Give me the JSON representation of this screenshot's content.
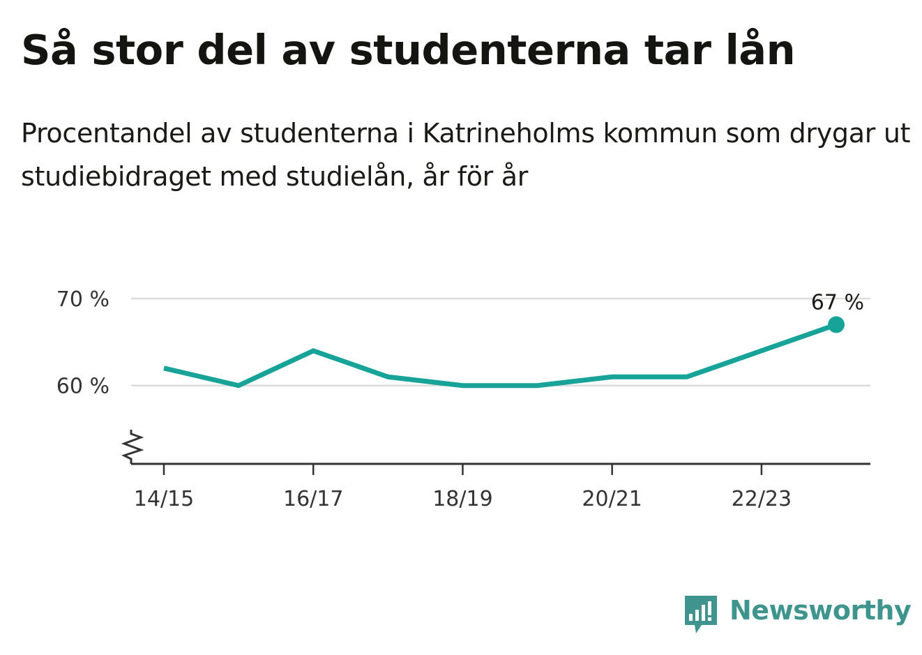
{
  "title": "Så stor del av studenterna tar lån",
  "subtitle": "Procentandel av studenterna i Katrineholms kommun som drygar ut studiebidraget med studielån, år för år",
  "brand": {
    "name": "Newsworthy",
    "icon": "newsworthy-bar-chart-bubble-icon",
    "color": "#3f958e"
  },
  "chart_data": {
    "type": "line",
    "x": [
      "14/15",
      "15/16",
      "16/17",
      "17/18",
      "18/19",
      "19/20",
      "20/21",
      "21/22",
      "22/23",
      "23/24"
    ],
    "series": [
      {
        "values": [
          62,
          60,
          64,
          61,
          60,
          60,
          61,
          61,
          64,
          67
        ],
        "color": "#17a398"
      }
    ],
    "x_tick_labels": [
      "14/15",
      "16/17",
      "18/19",
      "20/21",
      "22/23"
    ],
    "y_ticks": [
      {
        "value": 60,
        "label": "60 %"
      },
      {
        "value": 70,
        "label": "70 %"
      }
    ],
    "ylim": [
      51,
      70
    ],
    "y_axis_break": true,
    "gridlines": true,
    "end_label": "67 %"
  }
}
